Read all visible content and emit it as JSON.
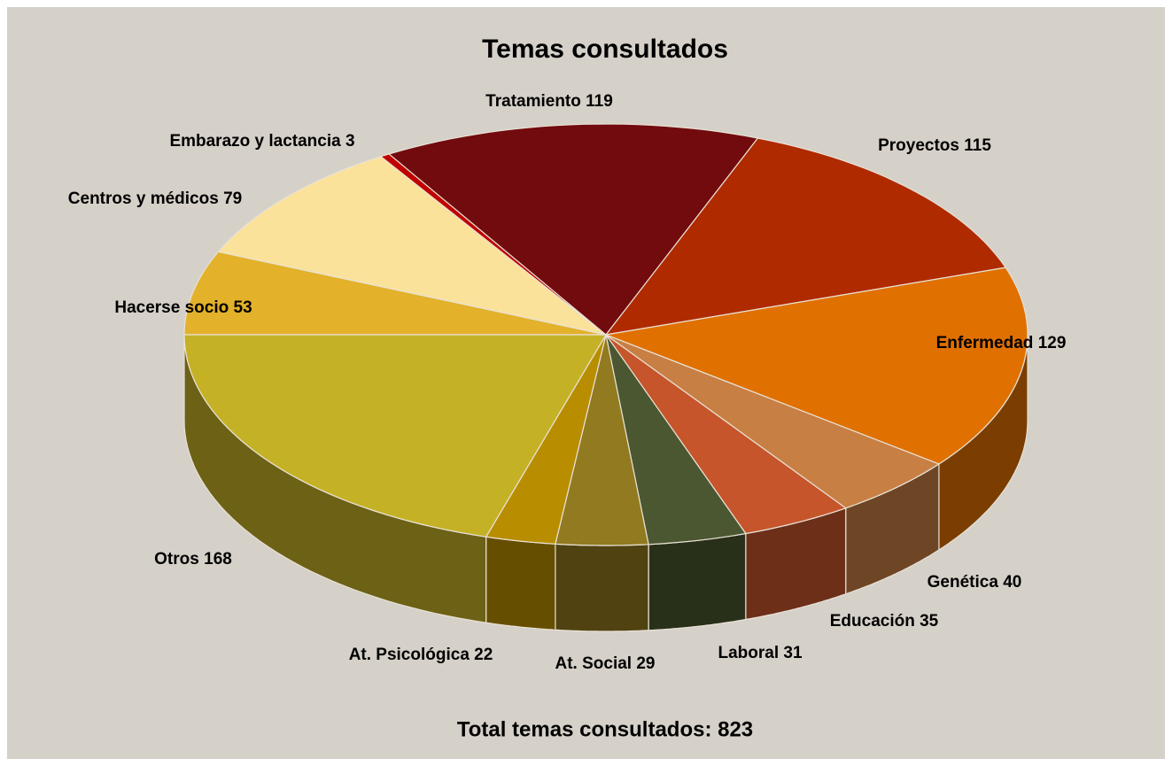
{
  "chart_data": {
    "type": "pie3d",
    "title": "Temas consultados",
    "categories": [
      "Hacerse socio",
      "Centros y médicos",
      "Embarazo y lactancia",
      "Tratamiento",
      "Proyectos",
      "Enfermedad",
      "Genética",
      "Educación",
      "Laboral",
      "At. Social",
      "At. Psicológica",
      "Otros"
    ],
    "values": [
      53,
      79,
      3,
      119,
      115,
      129,
      40,
      35,
      31,
      29,
      22,
      168
    ],
    "colors": [
      "#e3b12a",
      "#fae29b",
      "#c00000",
      "#720b0e",
      "#b02a00",
      "#e07000",
      "#c87f44",
      "#c6552b",
      "#4b5730",
      "#917a1f",
      "#b98d00",
      "#c5b126"
    ],
    "annotation": "Total temas consultados: 823"
  }
}
